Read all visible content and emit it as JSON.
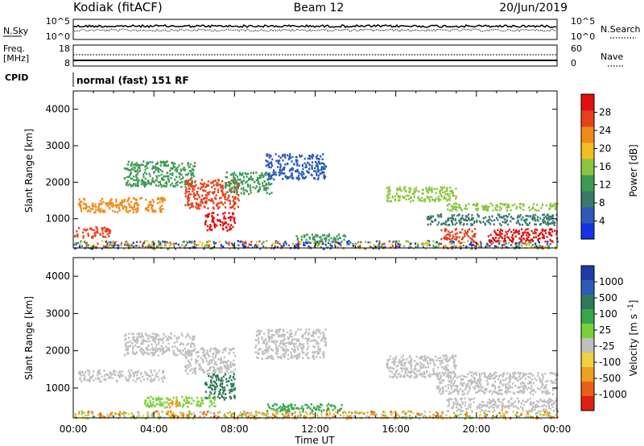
{
  "header": {
    "station": "Kodiak (fitACF)",
    "beam": "Beam 12",
    "date": "20/Jun/2019"
  },
  "panels": {
    "noise": {
      "left_label": "N.Sky",
      "right_label": "N.Search",
      "left_ticks": [
        "10^5",
        "10^0"
      ],
      "right_ticks": [
        "10^5",
        "10^0"
      ]
    },
    "freq": {
      "left_label_1": "Freq.",
      "left_label_2": "[MHz]",
      "right_label": "Nave",
      "left_ticks": [
        "18",
        "8"
      ],
      "right_ticks": [
        "60",
        "0"
      ]
    },
    "cpid": {
      "label": "CPID",
      "text": "normal (fast) 151 RF"
    }
  },
  "chart_data": [
    {
      "type": "heatmap",
      "name": "power",
      "ylabel": "Slant Range [km]",
      "xlabel": "",
      "yticks": [
        1000,
        2000,
        3000,
        4000
      ],
      "ylim": [
        200,
        4500
      ],
      "xlim": [
        0,
        24
      ],
      "colorbar": {
        "label": "Power [dB]",
        "ticks": [
          4,
          8,
          12,
          16,
          20,
          24,
          28
        ],
        "range": [
          0,
          32
        ],
        "colors": [
          "#1432e6",
          "#2e5bb8",
          "#3a7a6a",
          "#3f9a55",
          "#8cc63f",
          "#f0c020",
          "#f08a1a",
          "#e8401c",
          "#e01010"
        ]
      },
      "regions": [
        {
          "t0": 0.0,
          "t1": 24.0,
          "r0": 200,
          "r1": 420,
          "c": "mixed"
        },
        {
          "t0": 0.0,
          "t1": 1.8,
          "r0": 500,
          "r1": 800,
          "c": "#e8401c"
        },
        {
          "t0": 0.2,
          "t1": 4.5,
          "r0": 1200,
          "r1": 1600,
          "c": "#f08a1a"
        },
        {
          "t0": 2.5,
          "t1": 6.0,
          "r0": 1900,
          "r1": 2600,
          "c": "#3f9a55"
        },
        {
          "t0": 5.5,
          "t1": 8.2,
          "r0": 1300,
          "r1": 2100,
          "c": "#e8401c"
        },
        {
          "t0": 6.5,
          "t1": 8.0,
          "r0": 700,
          "r1": 1200,
          "c": "#e01010"
        },
        {
          "t0": 7.5,
          "t1": 9.8,
          "r0": 1700,
          "r1": 2300,
          "c": "#3f9a55"
        },
        {
          "t0": 9.5,
          "t1": 12.5,
          "r0": 2100,
          "r1": 2800,
          "c": "#2e5bb8"
        },
        {
          "t0": 11.0,
          "t1": 13.5,
          "r0": 400,
          "r1": 600,
          "c": "#3f9a55"
        },
        {
          "t0": 15.5,
          "t1": 19.0,
          "r0": 1500,
          "r1": 1900,
          "c": "#8cc63f"
        },
        {
          "t0": 18.5,
          "t1": 24.0,
          "r0": 1250,
          "r1": 1450,
          "c": "#8cc63f"
        },
        {
          "t0": 17.5,
          "t1": 24.0,
          "r0": 850,
          "r1": 1150,
          "c": "#3a7a6a"
        },
        {
          "t0": 18.2,
          "t1": 20.0,
          "r0": 450,
          "r1": 750,
          "c": "#e8401c"
        },
        {
          "t0": 20.5,
          "t1": 24.0,
          "r0": 400,
          "r1": 750,
          "c": "#e01010"
        }
      ]
    },
    {
      "type": "heatmap",
      "name": "velocity",
      "ylabel": "Slant Range [km]",
      "xlabel": "Time UT",
      "xticks": [
        "00:00",
        "04:00",
        "08:00",
        "12:00",
        "16:00",
        "20:00",
        "00:00"
      ],
      "yticks": [
        1000,
        2000,
        3000,
        4000
      ],
      "ylim": [
        200,
        4500
      ],
      "xlim": [
        0,
        24
      ],
      "colorbar": {
        "label": "Velocity [m s^-1]",
        "ticks": [
          "1000",
          "500",
          "100",
          "25",
          "-25",
          "-100",
          "-500",
          "-1000"
        ],
        "colors": [
          "#1e3ca8",
          "#2e5bb8",
          "#2f7a5a",
          "#35a84a",
          "#7ad23a",
          "#c0c0c0",
          "#f0d040",
          "#f0a020",
          "#e86018",
          "#e02010"
        ]
      },
      "regions": [
        {
          "t0": 0.0,
          "t1": 24.0,
          "r0": 200,
          "r1": 400,
          "c": "mixed"
        },
        {
          "t0": 0.2,
          "t1": 4.5,
          "r0": 1200,
          "r1": 1500,
          "c": "#c0c0c0"
        },
        {
          "t0": 2.5,
          "t1": 6.0,
          "r0": 1900,
          "r1": 2500,
          "c": "#c0c0c0"
        },
        {
          "t0": 5.5,
          "t1": 8.0,
          "r0": 1400,
          "r1": 2100,
          "c": "#c0c0c0"
        },
        {
          "t0": 6.5,
          "t1": 8.0,
          "r0": 700,
          "r1": 1400,
          "c": "#2f7a5a"
        },
        {
          "t0": 3.5,
          "t1": 7.0,
          "r0": 500,
          "r1": 800,
          "c": "#7ad23a"
        },
        {
          "t0": 4.6,
          "t1": 5.2,
          "r0": 500,
          "r1": 750,
          "c": "#f0a020"
        },
        {
          "t0": 9.0,
          "t1": 12.5,
          "r0": 1800,
          "r1": 2600,
          "c": "#c0c0c0"
        },
        {
          "t0": 9.5,
          "t1": 13.5,
          "r0": 400,
          "r1": 600,
          "c": "#35a84a"
        },
        {
          "t0": 15.5,
          "t1": 19.0,
          "r0": 1300,
          "r1": 1900,
          "c": "#c0c0c0"
        },
        {
          "t0": 18.0,
          "t1": 24.0,
          "r0": 850,
          "r1": 1450,
          "c": "#c0c0c0"
        },
        {
          "t0": 18.5,
          "t1": 24.0,
          "r0": 400,
          "r1": 750,
          "c": "#c0c0c0"
        }
      ]
    }
  ]
}
